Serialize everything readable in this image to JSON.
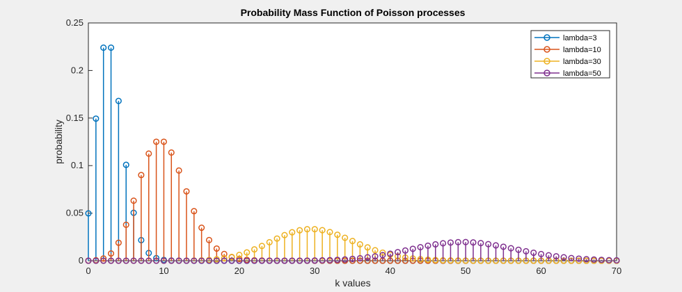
{
  "chart_data": {
    "type": "stem",
    "title": "Probability Mass Function of Poisson processes",
    "xlabel": "k values",
    "ylabel": "probability",
    "xlim": [
      0,
      70
    ],
    "ylim": [
      0,
      0.25
    ],
    "xticks": [
      "0",
      "10",
      "20",
      "30",
      "40",
      "50",
      "60",
      "70"
    ],
    "yticks": [
      "0",
      "0.05",
      "0.1",
      "0.15",
      "0.2",
      "0.25"
    ],
    "grid": false,
    "legend_position": "top-right",
    "series": [
      {
        "name": "lambda=3",
        "color": "#0072bd",
        "x": [
          0,
          1,
          2,
          3,
          4,
          5,
          6,
          7,
          8,
          9,
          10,
          11,
          12,
          13,
          14,
          15,
          16,
          17,
          18,
          19,
          20,
          21,
          22,
          23,
          24,
          25,
          26,
          27,
          28,
          29,
          30,
          31,
          32,
          33,
          34,
          35,
          36,
          37,
          38,
          39,
          40,
          41,
          42,
          43,
          44,
          45,
          46,
          47,
          48,
          49,
          50,
          51,
          52,
          53,
          54,
          55,
          56,
          57,
          58,
          59,
          60,
          61,
          62,
          63,
          64,
          65,
          66,
          67,
          68,
          69,
          70
        ],
        "values": [
          0.0498,
          0.1494,
          0.224,
          0.224,
          0.168,
          0.1008,
          0.0504,
          0.0216,
          0.0081,
          0.0027,
          0.0008,
          0.0002,
          0.0001,
          0,
          0,
          0,
          0,
          0,
          0,
          0,
          0,
          0,
          0,
          0,
          0,
          0,
          0,
          0,
          0,
          0,
          0,
          0,
          0,
          0,
          0,
          0,
          0,
          0,
          0,
          0,
          0,
          0,
          0,
          0,
          0,
          0,
          0,
          0,
          0,
          0,
          0,
          0,
          0,
          0,
          0,
          0,
          0,
          0,
          0,
          0,
          0,
          0,
          0,
          0,
          0,
          0,
          0,
          0,
          0,
          0,
          0
        ]
      },
      {
        "name": "lambda=10",
        "color": "#d95319",
        "x": [
          0,
          1,
          2,
          3,
          4,
          5,
          6,
          7,
          8,
          9,
          10,
          11,
          12,
          13,
          14,
          15,
          16,
          17,
          18,
          19,
          20,
          21,
          22,
          23,
          24,
          25,
          26,
          27,
          28,
          29,
          30,
          31,
          32,
          33,
          34,
          35,
          36,
          37,
          38,
          39,
          40,
          41,
          42,
          43,
          44,
          45,
          46,
          47,
          48,
          49,
          50,
          51,
          52,
          53,
          54,
          55,
          56,
          57,
          58,
          59,
          60,
          61,
          62,
          63,
          64,
          65,
          66,
          67,
          68,
          69,
          70
        ],
        "values": [
          0,
          0.0005,
          0.0023,
          0.0076,
          0.0189,
          0.0378,
          0.0631,
          0.0901,
          0.1126,
          0.1251,
          0.1251,
          0.1137,
          0.0948,
          0.0729,
          0.0521,
          0.0347,
          0.0217,
          0.0128,
          0.0071,
          0.0037,
          0.0019,
          0.0009,
          0.0004,
          0.0002,
          0.0001,
          0,
          0,
          0,
          0,
          0,
          0,
          0,
          0,
          0,
          0,
          0,
          0,
          0,
          0,
          0,
          0,
          0,
          0,
          0,
          0,
          0,
          0,
          0,
          0,
          0,
          0,
          0,
          0,
          0,
          0,
          0,
          0,
          0,
          0,
          0,
          0,
          0,
          0,
          0,
          0,
          0,
          0,
          0,
          0,
          0,
          0
        ]
      },
      {
        "name": "lambda=30",
        "color": "#edb120",
        "x": [
          0,
          1,
          2,
          3,
          4,
          5,
          6,
          7,
          8,
          9,
          10,
          11,
          12,
          13,
          14,
          15,
          16,
          17,
          18,
          19,
          20,
          21,
          22,
          23,
          24,
          25,
          26,
          27,
          28,
          29,
          30,
          31,
          32,
          33,
          34,
          35,
          36,
          37,
          38,
          39,
          40,
          41,
          42,
          43,
          44,
          45,
          46,
          47,
          48,
          49,
          50,
          51,
          52,
          53,
          54,
          55,
          56,
          57,
          58,
          59,
          60,
          61,
          62,
          63,
          64,
          65,
          66,
          67,
          68,
          69,
          70
        ],
        "values": [
          0,
          0,
          0,
          0,
          0,
          0,
          0,
          0,
          0,
          0,
          0,
          0,
          0,
          0.0001,
          0.0002,
          0.0004,
          0.0008,
          0.0015,
          0.0025,
          0.004,
          0.0061,
          0.0087,
          0.0119,
          0.0155,
          0.0194,
          0.0233,
          0.0269,
          0.0299,
          0.032,
          0.0331,
          0.0331,
          0.0321,
          0.0301,
          0.0273,
          0.0241,
          0.0207,
          0.0172,
          0.014,
          0.011,
          0.0085,
          0.0063,
          0.0046,
          0.0033,
          0.0023,
          0.0016,
          0.0011,
          0.0007,
          0.0004,
          0.0003,
          0.0002,
          0.0001,
          0,
          0,
          0,
          0,
          0,
          0,
          0,
          0,
          0,
          0,
          0,
          0,
          0,
          0,
          0,
          0,
          0,
          0,
          0,
          0
        ]
      },
      {
        "name": "lambda=50",
        "color": "#7e2f8e",
        "x": [
          0,
          1,
          2,
          3,
          4,
          5,
          6,
          7,
          8,
          9,
          10,
          11,
          12,
          13,
          14,
          15,
          16,
          17,
          18,
          19,
          20,
          21,
          22,
          23,
          24,
          25,
          26,
          27,
          28,
          29,
          30,
          31,
          32,
          33,
          34,
          35,
          36,
          37,
          38,
          39,
          40,
          41,
          42,
          43,
          44,
          45,
          46,
          47,
          48,
          49,
          50,
          51,
          52,
          53,
          54,
          55,
          56,
          57,
          58,
          59,
          60,
          61,
          62,
          63,
          64,
          65,
          66,
          67,
          68,
          69,
          70
        ],
        "values": [
          0,
          0,
          0,
          0,
          0,
          0,
          0,
          0,
          0,
          0,
          0,
          0,
          0,
          0,
          0,
          0,
          0,
          0,
          0,
          0,
          0,
          0,
          0,
          0,
          0,
          0,
          0,
          0,
          0,
          0.0001,
          0.0002,
          0.0004,
          0.0006,
          0.0009,
          0.0013,
          0.0019,
          0.0026,
          0.0036,
          0.0046,
          0.0059,
          0.0074,
          0.009,
          0.0107,
          0.0125,
          0.0142,
          0.0158,
          0.0172,
          0.0183,
          0.0191,
          0.0195,
          0.0196,
          0.0192,
          0.0185,
          0.0174,
          0.0161,
          0.0147,
          0.0131,
          0.0115,
          0.0099,
          0.0084,
          0.007,
          0.0057,
          0.0046,
          0.0036,
          0.0028,
          0.0022,
          0.0016,
          0.0012,
          0.0009,
          0.0006,
          0.0004
        ]
      }
    ]
  }
}
